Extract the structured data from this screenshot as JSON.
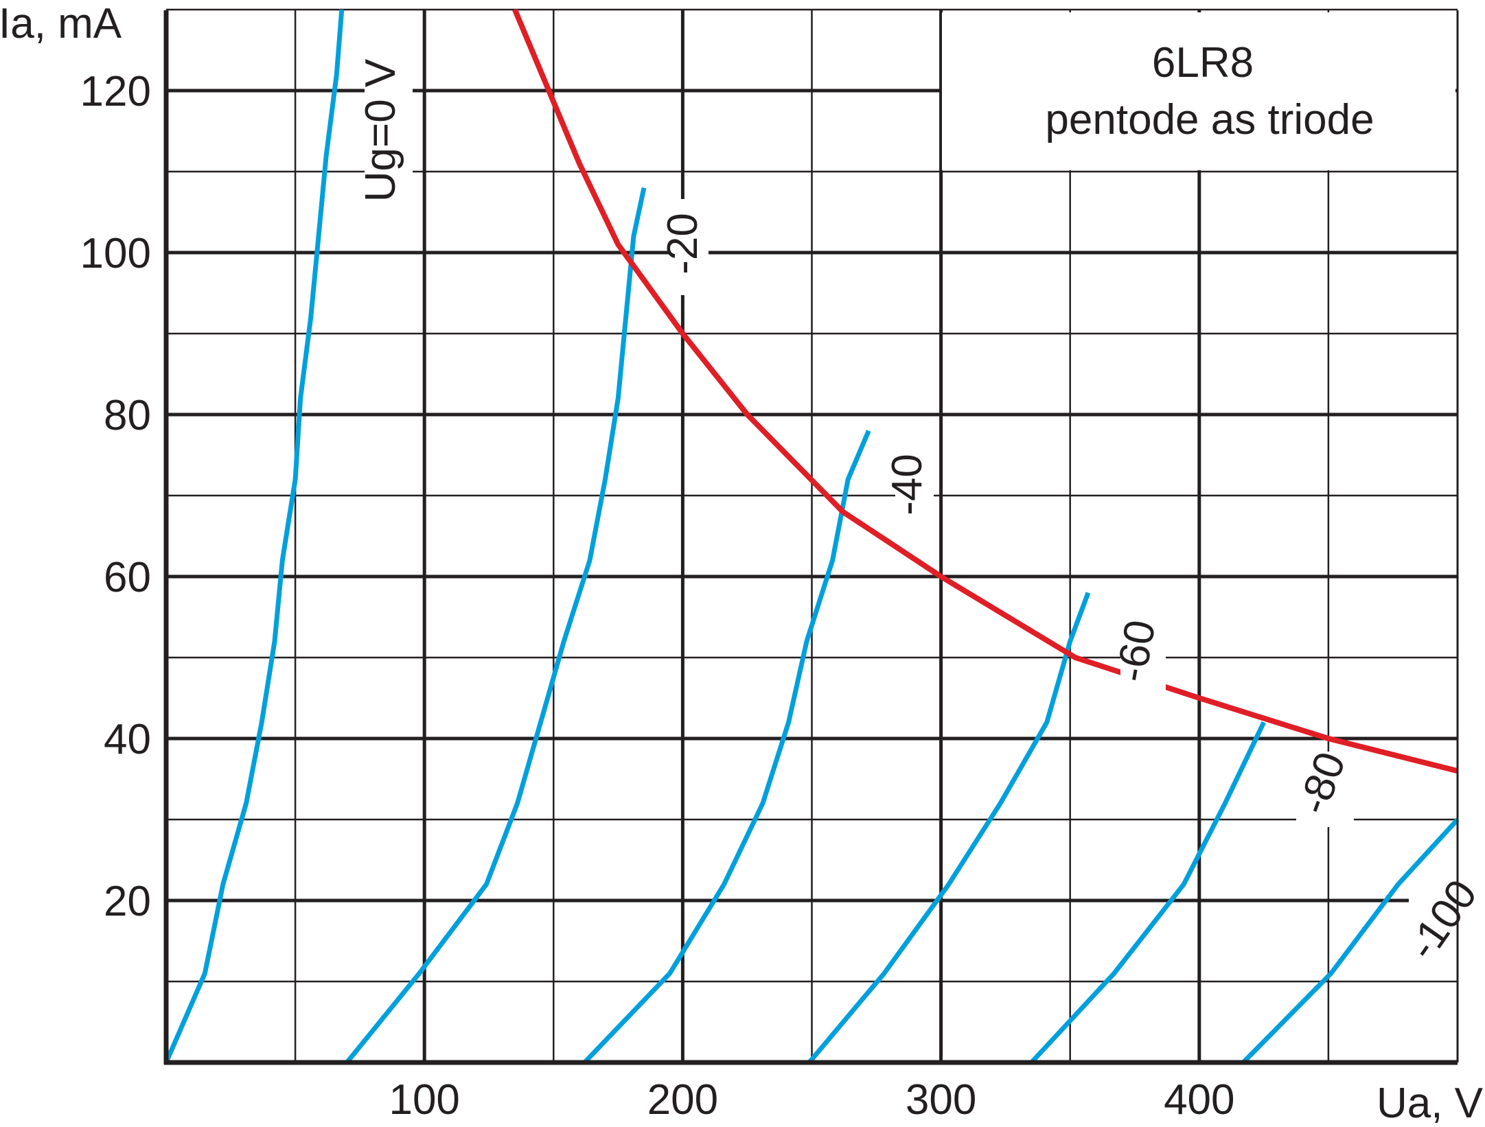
{
  "chart_data": {
    "type": "line",
    "title": "6LR8",
    "subtitle": "pentode as triode",
    "xlabel": "Ua, V",
    "ylabel": "Ia, mA",
    "xlim": [
      0,
      500
    ],
    "ylim": [
      0,
      130
    ],
    "x_ticks": [
      "100",
      "200",
      "300",
      "400"
    ],
    "y_ticks": [
      "20",
      "40",
      "60",
      "80",
      "100",
      "120"
    ],
    "x_tick_values": [
      100,
      200,
      300,
      400
    ],
    "y_tick_values": [
      20,
      40,
      60,
      80,
      100,
      120
    ],
    "grid": true,
    "series": [
      {
        "name": "Ug=0 V",
        "color": "#00a0dc",
        "points": [
          [
            0,
            0
          ],
          [
            15,
            11
          ],
          [
            22,
            22
          ],
          [
            31,
            32
          ],
          [
            37,
            42
          ],
          [
            42,
            52
          ],
          [
            45,
            62
          ],
          [
            50,
            72
          ],
          [
            52,
            82
          ],
          [
            56,
            92
          ],
          [
            59,
            102
          ],
          [
            62,
            112
          ],
          [
            66,
            122
          ],
          [
            68,
            130
          ]
        ]
      },
      {
        "name": "-20",
        "color": "#00a0dc",
        "points": [
          [
            70,
            0
          ],
          [
            98,
            11
          ],
          [
            124,
            22
          ],
          [
            136,
            32
          ],
          [
            145,
            42
          ],
          [
            154,
            52
          ],
          [
            164,
            62
          ],
          [
            170,
            72
          ],
          [
            175,
            82
          ],
          [
            178,
            92
          ],
          [
            181,
            102
          ],
          [
            185,
            108
          ]
        ]
      },
      {
        "name": "-40",
        "color": "#00a0dc",
        "points": [
          [
            162,
            0
          ],
          [
            195,
            11
          ],
          [
            216,
            22
          ],
          [
            231,
            32
          ],
          [
            241,
            42
          ],
          [
            248,
            52
          ],
          [
            258,
            62
          ],
          [
            264,
            72
          ],
          [
            272,
            78
          ]
        ]
      },
      {
        "name": "-60",
        "color": "#00a0dc",
        "points": [
          [
            249,
            0
          ],
          [
            278,
            11
          ],
          [
            303,
            22
          ],
          [
            323,
            32
          ],
          [
            341,
            42
          ],
          [
            350,
            52
          ],
          [
            357,
            58
          ]
        ]
      },
      {
        "name": "-80",
        "color": "#00a0dc",
        "points": [
          [
            335,
            0
          ],
          [
            367,
            11
          ],
          [
            394,
            22
          ],
          [
            410,
            32
          ],
          [
            425,
            42
          ]
        ]
      },
      {
        "name": "-100",
        "color": "#00a0dc",
        "points": [
          [
            417,
            0
          ],
          [
            451,
            11
          ],
          [
            477,
            22
          ],
          [
            500,
            30
          ]
        ]
      },
      {
        "name": "",
        "color": "#e01e25",
        "points": [
          [
            135,
            130
          ],
          [
            160,
            111
          ],
          [
            175,
            101
          ],
          [
            200,
            90
          ],
          [
            225,
            80
          ],
          [
            262,
            68
          ],
          [
            300,
            60
          ],
          [
            352,
            50
          ],
          [
            400,
            45
          ],
          [
            450,
            40
          ],
          [
            500,
            36
          ]
        ]
      }
    ],
    "curve_labels": [
      "Ug=0 V",
      "-20",
      "-40",
      "-60",
      "-80",
      "-100"
    ]
  }
}
